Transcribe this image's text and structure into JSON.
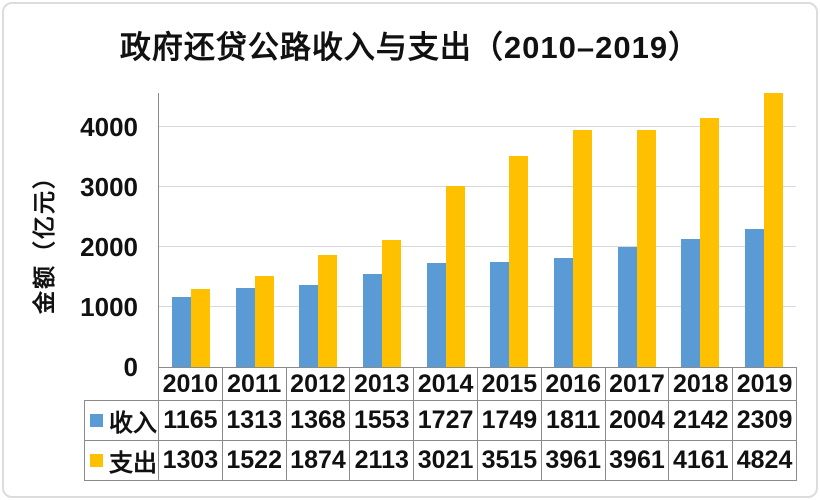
{
  "chart_data": {
    "type": "bar",
    "title": "政府还贷公路收入与支出（2010–2019）",
    "ylabel": "金额（亿元）",
    "categories": [
      "2010",
      "2011",
      "2012",
      "2013",
      "2014",
      "2015",
      "2016",
      "2017",
      "2018",
      "2019"
    ],
    "series": [
      {
        "name": "收入",
        "color": "#5B9BD5",
        "values": [
          1165,
          1313,
          1368,
          1553,
          1727,
          1749,
          1811,
          2004,
          2142,
          2309
        ]
      },
      {
        "name": "支出",
        "color": "#FFC000",
        "values": [
          1303,
          1522,
          1874,
          2113,
          3021,
          3515,
          3961,
          3961,
          4161,
          4824
        ]
      }
    ],
    "yticks": [
      0,
      1000,
      2000,
      3000,
      4000
    ],
    "ylim": [
      0,
      4570
    ],
    "grid": true,
    "legend_position": "table-rows-left"
  },
  "colors": {
    "income_bar": "#5B9BD5",
    "expense_bar": "#FFC000",
    "gridline": "#D9D9D9",
    "axis_line": "#8A8A8A",
    "table_border": "#8A8A8A",
    "text": "#111111",
    "frame_border": "#DCDCDC",
    "background": "#FFFFFF"
  }
}
